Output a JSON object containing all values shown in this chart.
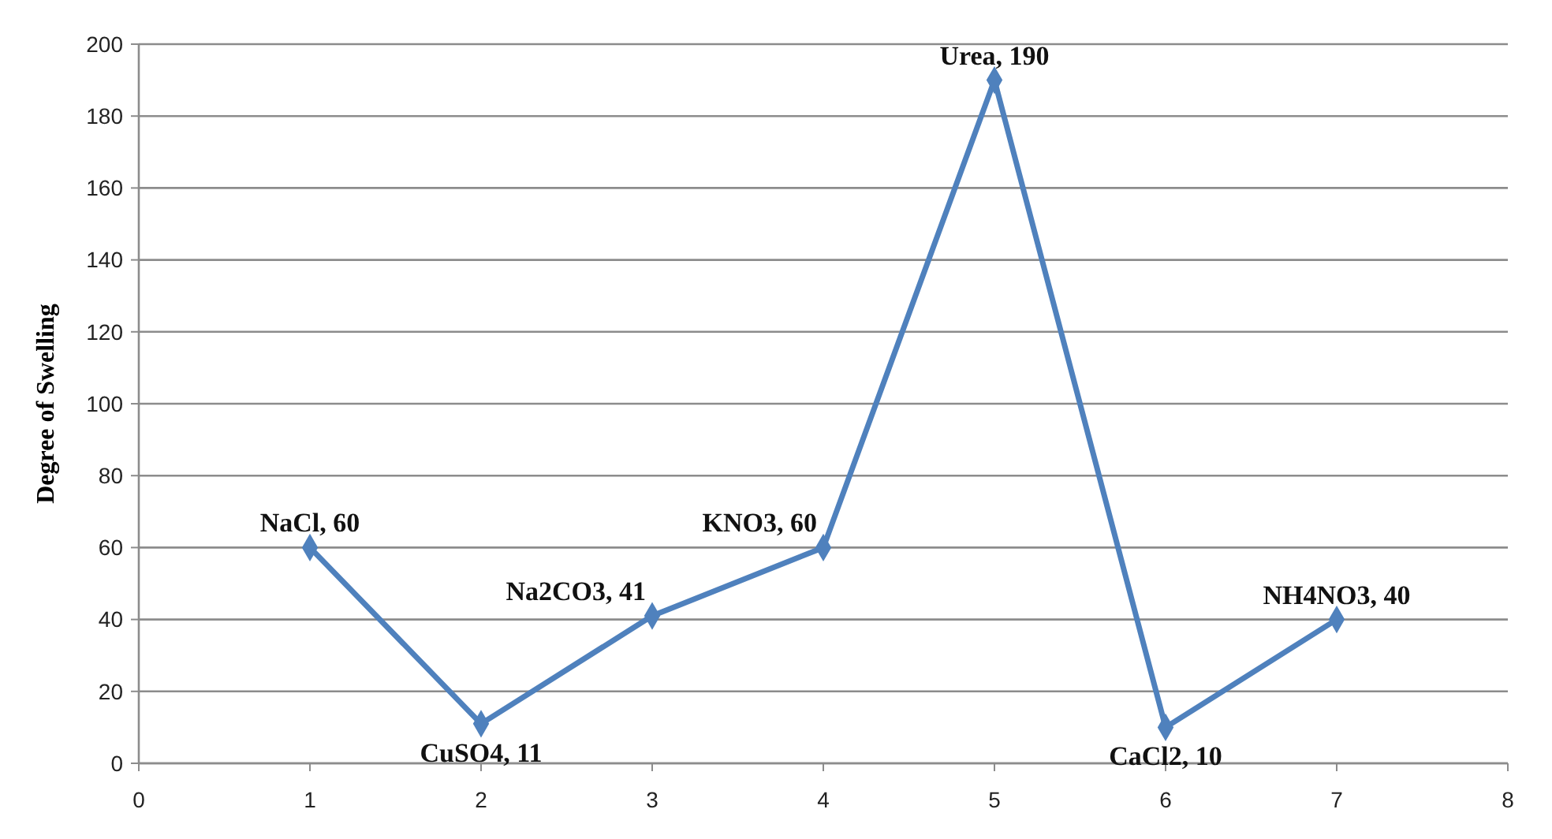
{
  "chart_data": {
    "type": "line",
    "ylabel": "Degree of Swelling",
    "x": [
      1,
      2,
      3,
      4,
      5,
      6,
      7
    ],
    "series": [
      {
        "color": "#4f81bd",
        "values": [
          60,
          11,
          41,
          60,
          190,
          10,
          40
        ]
      }
    ],
    "xlim": [
      0,
      8
    ],
    "xticks": [
      0,
      1,
      2,
      3,
      4,
      5,
      6,
      7,
      8
    ],
    "ylim": [
      0,
      200
    ],
    "yticks": [
      0,
      20,
      40,
      60,
      80,
      100,
      120,
      140,
      160,
      180,
      200
    ],
    "grid": "y",
    "marker": "diamond",
    "line_style": "solid",
    "annotations": [
      {
        "text": "NaCl, 60",
        "x": 1,
        "y": 60
      },
      {
        "text": "CuSO4, 11",
        "x": 2,
        "y": 11
      },
      {
        "text": "Na2CO3, 41",
        "x": 3,
        "y": 41
      },
      {
        "text": "KNO3, 60",
        "x": 4,
        "y": 60
      },
      {
        "text": "Urea, 190",
        "x": 5,
        "y": 190
      },
      {
        "text": "CaCl2, 10",
        "x": 6,
        "y": 10
      },
      {
        "text": "NH4NO3, 40",
        "x": 7,
        "y": 40
      }
    ]
  }
}
